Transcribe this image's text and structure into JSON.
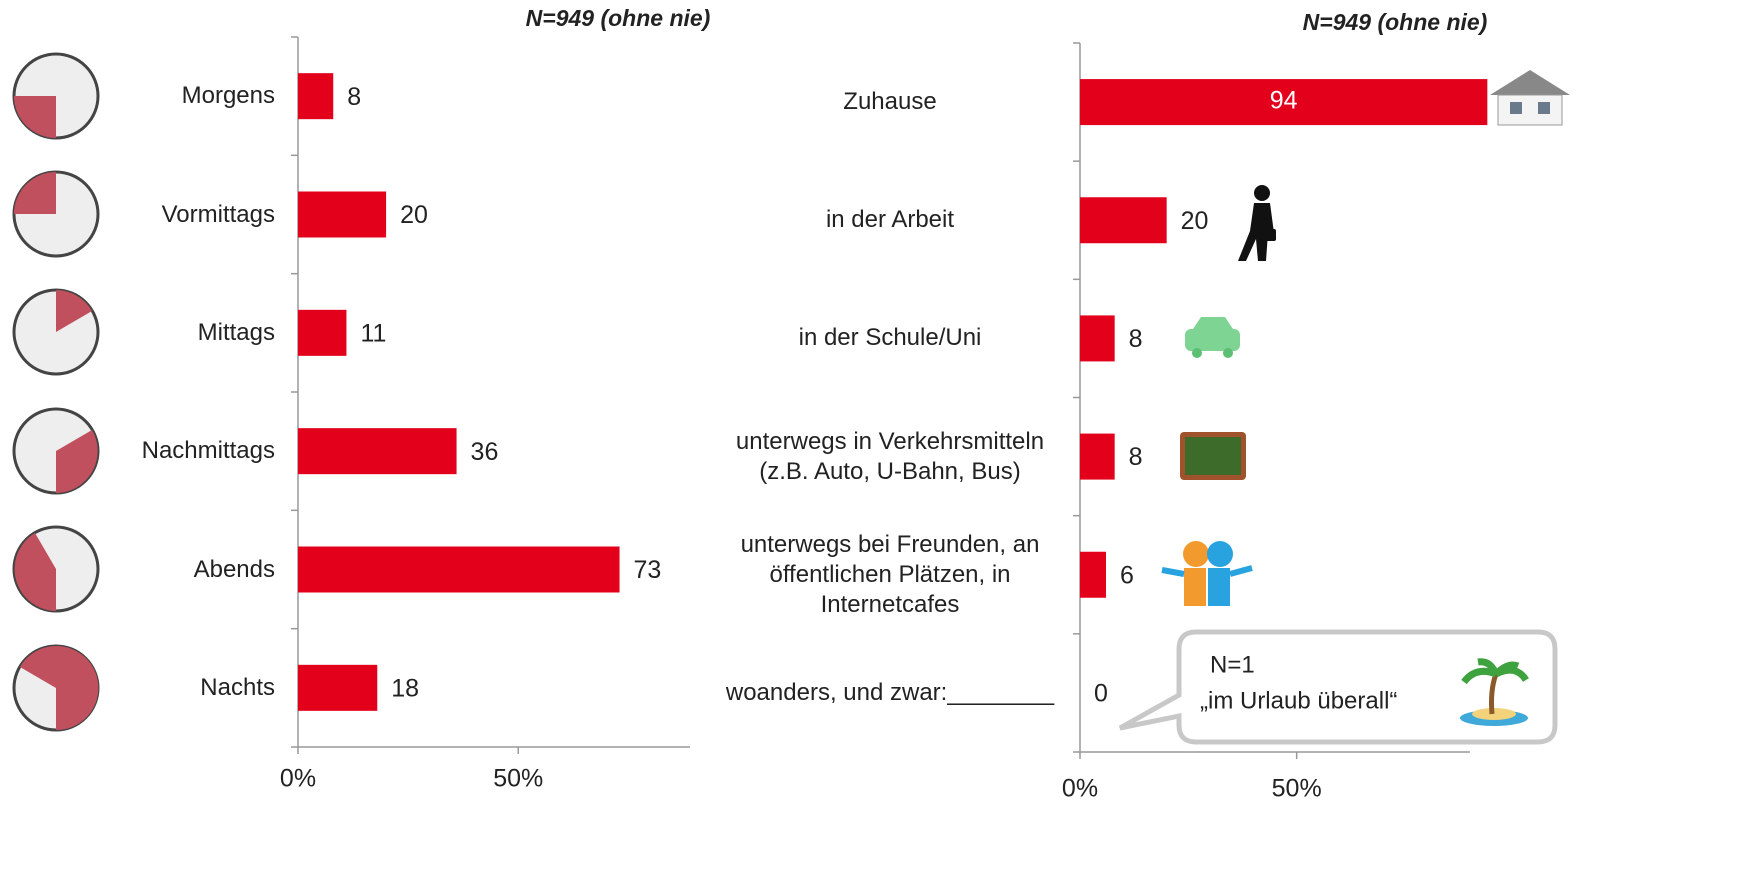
{
  "chart_data": [
    {
      "type": "bar",
      "orientation": "horizontal",
      "title": "N=949 (ohne nie)",
      "categories": [
        "Morgens",
        "Vormittags",
        "Mittags",
        "Nachmittags",
        "Abends",
        "Nachts"
      ],
      "values": [
        8,
        20,
        11,
        36,
        73,
        18
      ],
      "color": "#e2001a",
      "xlim": [
        0,
        89
      ],
      "xticks": [
        {
          "value": 0,
          "label": "0%"
        },
        {
          "value": 50,
          "label": "50%"
        }
      ]
    },
    {
      "type": "bar",
      "orientation": "horizontal",
      "title": "N=949 (ohne nie)",
      "categories": [
        "Zuhause",
        "in der Arbeit",
        "in der Schule/Uni",
        "unterwegs in Verkehrsmitteln (z.B. Auto, U-Bahn, Bus)",
        "unterwegs bei Freunden, an öffentlichen Plätzen, in Internetcafes",
        "woanders, und zwar:________"
      ],
      "values": [
        94,
        20,
        8,
        8,
        6,
        0
      ],
      "color": "#e2001a",
      "xlim": [
        0,
        90
      ],
      "xticks": [
        {
          "value": 0,
          "label": "0%"
        },
        {
          "value": 50,
          "label": "50%"
        }
      ],
      "annotation": [
        "N=1",
        "„im Urlaub überall“"
      ]
    }
  ]
}
